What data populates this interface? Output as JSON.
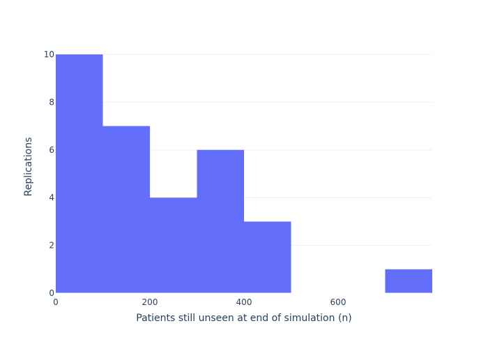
{
  "chart_data": {
    "type": "histogram",
    "xlabel": "Patients still unseen at end of simulation (n)",
    "ylabel": "Replications",
    "bin_width": 100,
    "bins": [
      {
        "start": 0,
        "end": 100,
        "count": 10
      },
      {
        "start": 100,
        "end": 200,
        "count": 7
      },
      {
        "start": 200,
        "end": 300,
        "count": 4
      },
      {
        "start": 300,
        "end": 400,
        "count": 6
      },
      {
        "start": 400,
        "end": 500,
        "count": 3
      },
      {
        "start": 500,
        "end": 600,
        "count": 0
      },
      {
        "start": 600,
        "end": 700,
        "count": 0
      },
      {
        "start": 700,
        "end": 800,
        "count": 1
      }
    ],
    "xlim": [
      0,
      800
    ],
    "ylim": [
      0,
      10
    ],
    "x_ticks": [
      0,
      200,
      400,
      600
    ],
    "y_ticks": [
      0,
      2,
      4,
      6,
      8,
      10
    ],
    "grid": "horizontal",
    "bar_color": "#636efa",
    "grid_color": "#ebf0f8",
    "text_color": "#2a3f5f"
  }
}
